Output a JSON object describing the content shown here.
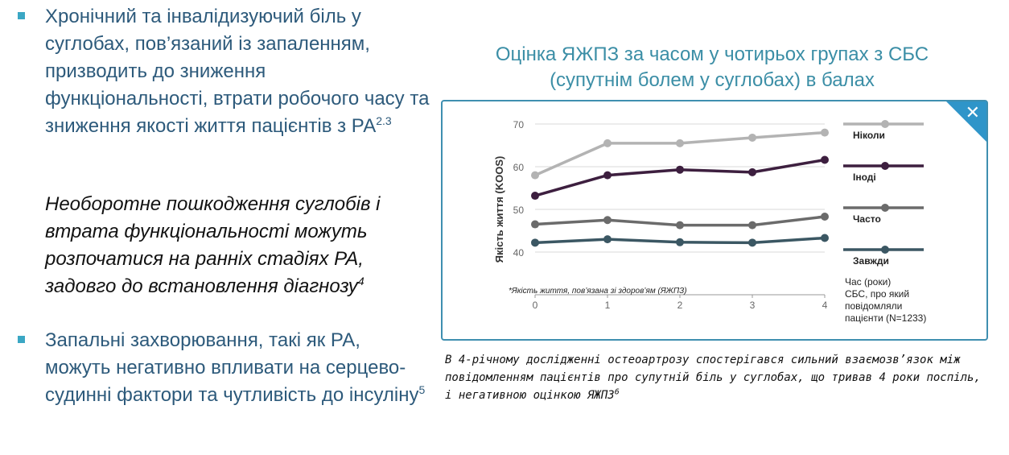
{
  "left_text": {
    "bullet1": "Хронічний та інвалідизуючий біль у суглобах, пов’язаний із запаленням, призводить до зниження функціональності, втрати робочого часу та зниження якості життя пацієнтів з РА",
    "bullet1_ref": "2.3",
    "italic": "Необоротне пошкодження суглобів і втрата функціональності можуть розпочатися на ранніх стадіях РА, задовго до встановлення діагнозу",
    "italic_ref": "4",
    "bullet2": "Запальні захворювання, такі як РА, можуть негативно впливати на серцево-судинні фактори та чутливість до інсуліну",
    "bullet2_ref": "5"
  },
  "chart_heading": {
    "line1": "Оцінка ЯЖПЗ за часом у чотирьох групах з СБС",
    "line2": "(супутнім болем у суглобах) в балах"
  },
  "close_glyph": "✕",
  "caption": {
    "text": "В 4-річному дослідженні остеоартрозу спостерігався сильний взаємозв’язок між повідомленням пацієнтів про супутній біль у суглобах, що тривав 4 роки поспіль, і негативною оцінкою ЯЖПЗ",
    "ref": "6"
  },
  "chart_data": {
    "type": "line",
    "ylabel": "Якість життя (KOOS)",
    "xlabel": "Час (роки)",
    "footnote": "*Якість життя, пов’язана зі здоров’ям (ЯЖПЗ)",
    "legend_note": [
      "СБС, про який",
      "повідомляли",
      "пацієнти (N=1233)"
    ],
    "x": [
      0,
      1,
      2,
      3,
      4
    ],
    "xlim": [
      0,
      4
    ],
    "ylim": [
      30,
      70
    ],
    "yticks": [
      40,
      50,
      60,
      70
    ],
    "xticks": [
      0,
      1,
      2,
      3,
      4
    ],
    "grid": true,
    "legend_placement": "right",
    "series": [
      {
        "name": "Ніколи",
        "values": [
          58,
          65.5,
          65.5,
          66.8,
          68
        ],
        "color": "#b3b3b3"
      },
      {
        "name": "Іноді",
        "values": [
          53.2,
          58,
          59.3,
          58.7,
          61.6
        ],
        "color": "#3d1f3f"
      },
      {
        "name": "Часто",
        "values": [
          46.5,
          47.5,
          46.3,
          46.3,
          48.3
        ],
        "color": "#6b6b6b"
      },
      {
        "name": "Завжди",
        "values": [
          42.2,
          43,
          42.3,
          42.2,
          43.3
        ],
        "color": "#3b5763"
      }
    ]
  }
}
